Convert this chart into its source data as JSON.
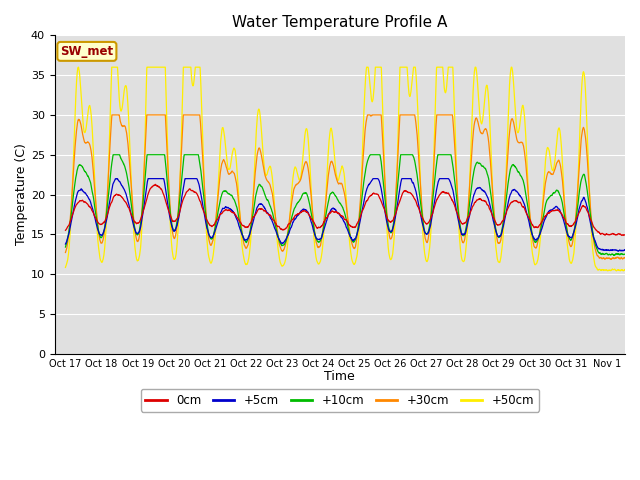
{
  "title": "Water Temperature Profile A",
  "xlabel": "Time",
  "ylabel": "Temperature (C)",
  "ylim": [
    0,
    40
  ],
  "yticks": [
    0,
    5,
    10,
    15,
    20,
    25,
    30,
    35,
    40
  ],
  "legend_label": "SW_met",
  "legend_box_facecolor": "#ffffcc",
  "legend_box_edgecolor": "#cc9900",
  "series_colors": {
    "0cm": "#dd0000",
    "+5cm": "#0000cc",
    "+10cm": "#00bb00",
    "+30cm": "#ff8800",
    "+50cm": "#ffee00"
  },
  "plot_bg": "#e0e0e0",
  "fig_bg": "#ffffff"
}
